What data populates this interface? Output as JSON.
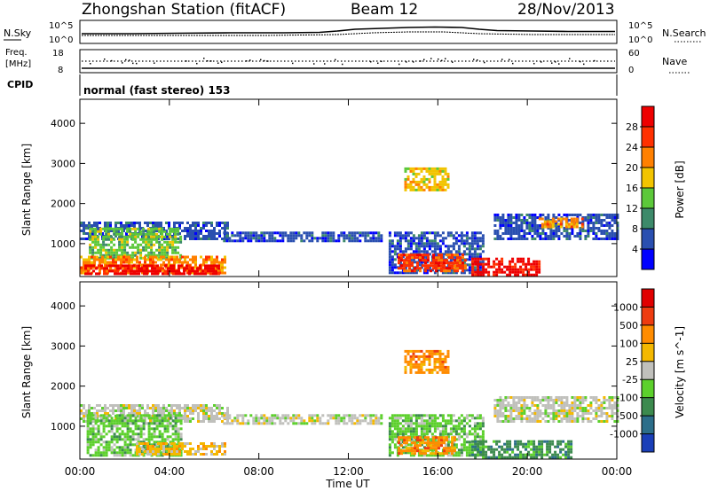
{
  "header": {
    "station": "Zhongshan Station (fitACF)",
    "beam": "Beam 12",
    "date": "28/Nov/2013"
  },
  "status_panels": {
    "nsky": {
      "label": "N.Sky",
      "right_label": "N.Search",
      "left_ticks": [
        "10^5",
        "10^0"
      ],
      "right_ticks": [
        "10^5",
        "10^0"
      ]
    },
    "freq": {
      "label_line1": "Freq.",
      "label_line2": "[MHz]",
      "right_label": "Nave",
      "left_ticks": [
        "18",
        "8"
      ],
      "right_ticks": [
        "60",
        "0"
      ]
    },
    "cpid": {
      "label": "CPID",
      "value": "normal (fast stereo) 153"
    }
  },
  "chart_data": [
    {
      "type": "heatmap",
      "name": "power",
      "ylabel": "Slant Range [km]",
      "xlabel": "",
      "x_range_hours": [
        0,
        24
      ],
      "ylim": [
        180,
        4600
      ],
      "x_tick_labels": [
        "00:00",
        "04:00",
        "08:00",
        "12:00",
        "16:00",
        "20:00",
        "00:00"
      ],
      "y_tick_labels": [
        "1000",
        "2000",
        "3000",
        "4000"
      ],
      "y_ticks": [
        1000,
        2000,
        3000,
        4000
      ],
      "colorbar": {
        "label": "Power [dB]",
        "tick_labels": [
          "4",
          "8",
          "12",
          "16",
          "20",
          "24",
          "28"
        ],
        "bins": [
          {
            "color": "#0000ff",
            "range": [
              0,
              4
            ]
          },
          {
            "color": "#2a4fb0",
            "range": [
              4,
              8
            ]
          },
          {
            "color": "#3d8a6a",
            "range": [
              8,
              12
            ]
          },
          {
            "color": "#5cc83a",
            "range": [
              12,
              16
            ]
          },
          {
            "color": "#f2c400",
            "range": [
              16,
              20
            ]
          },
          {
            "color": "#ff8000",
            "range": [
              20,
              24
            ]
          },
          {
            "color": "#ff3000",
            "range": [
              24,
              28
            ]
          },
          {
            "color": "#ee0000",
            "range": [
              28,
              32
            ]
          }
        ]
      },
      "regions": [
        {
          "t": [
            0,
            6.6
          ],
          "r": [
            1100,
            1550
          ],
          "bin": 1
        },
        {
          "t": [
            0.4,
            4.5
          ],
          "r": [
            650,
            1400
          ],
          "bin": 3
        },
        {
          "t": [
            0,
            6.5
          ],
          "r": [
            300,
            700
          ],
          "bin": 5
        },
        {
          "t": [
            0.2,
            6.2
          ],
          "r": [
            260,
            480
          ],
          "bin": 7
        },
        {
          "t": [
            6.4,
            13.5
          ],
          "r": [
            1050,
            1300
          ],
          "bin": 1
        },
        {
          "t": [
            13.8,
            18.0
          ],
          "r": [
            260,
            1300
          ],
          "bin": 1
        },
        {
          "t": [
            14.2,
            17.2
          ],
          "r": [
            300,
            750
          ],
          "bin": 6
        },
        {
          "t": [
            14.5,
            16.5
          ],
          "r": [
            2350,
            2900
          ],
          "bin": 4
        },
        {
          "t": [
            17.5,
            20.5
          ],
          "r": [
            230,
            650
          ],
          "bin": 7
        },
        {
          "t": [
            18.5,
            24.0
          ],
          "r": [
            1150,
            1750
          ],
          "bin": 1
        },
        {
          "t": [
            20.5,
            22.5
          ],
          "r": [
            1400,
            1650
          ],
          "bin": 5
        }
      ]
    },
    {
      "type": "heatmap",
      "name": "velocity",
      "ylabel": "Slant Range [km]",
      "xlabel": "Time UT",
      "x_range_hours": [
        0,
        24
      ],
      "ylim": [
        180,
        4600
      ],
      "x_tick_labels": [
        "00:00",
        "04:00",
        "08:00",
        "12:00",
        "16:00",
        "20:00",
        "00:00"
      ],
      "y_tick_labels": [
        "1000",
        "2000",
        "3000",
        "4000"
      ],
      "y_ticks": [
        1000,
        2000,
        3000,
        4000
      ],
      "colorbar": {
        "label": "Velocity [m s^-1]",
        "tick_labels": [
          "1000",
          "500",
          "100",
          "25",
          "-25",
          "-100",
          "-500",
          "-1000"
        ],
        "bins": [
          {
            "color": "#1a3fb8",
            "range": [
              500,
              1000
            ]
          },
          {
            "color": "#2c6e8a",
            "range": [
              100,
              500
            ]
          },
          {
            "color": "#3c8a4e",
            "range": [
              25,
              100
            ]
          },
          {
            "color": "#5cd02c",
            "range": [
              0,
              25
            ]
          },
          {
            "color": "#c0c0bc",
            "range": [
              -25,
              0
            ]
          },
          {
            "color": "#f4b800",
            "range": [
              -100,
              -25
            ]
          },
          {
            "color": "#ff8c00",
            "range": [
              -500,
              -100
            ]
          },
          {
            "color": "#ee3c10",
            "range": [
              -1000,
              -500
            ]
          },
          {
            "color": "#e00000",
            "range": [
              -1500,
              -1000
            ]
          }
        ]
      },
      "regions": [
        {
          "t": [
            0,
            6.6
          ],
          "r": [
            1100,
            1550
          ],
          "bin": 4
        },
        {
          "t": [
            0.3,
            4.5
          ],
          "r": [
            300,
            1300
          ],
          "bin": 3
        },
        {
          "t": [
            2.5,
            6.5
          ],
          "r": [
            300,
            600
          ],
          "bin": 5
        },
        {
          "t": [
            6.4,
            13.5
          ],
          "r": [
            1050,
            1300
          ],
          "bin": 4
        },
        {
          "t": [
            13.8,
            18.0
          ],
          "r": [
            260,
            1300
          ],
          "bin": 3
        },
        {
          "t": [
            14.2,
            16.8
          ],
          "r": [
            300,
            750
          ],
          "bin": 6
        },
        {
          "t": [
            14.5,
            16.5
          ],
          "r": [
            2350,
            2900
          ],
          "bin": 6
        },
        {
          "t": [
            17.5,
            22.0
          ],
          "r": [
            230,
            650
          ],
          "bin": 2
        },
        {
          "t": [
            18.5,
            24.0
          ],
          "r": [
            1150,
            1750
          ],
          "bin": 4
        }
      ]
    }
  ]
}
